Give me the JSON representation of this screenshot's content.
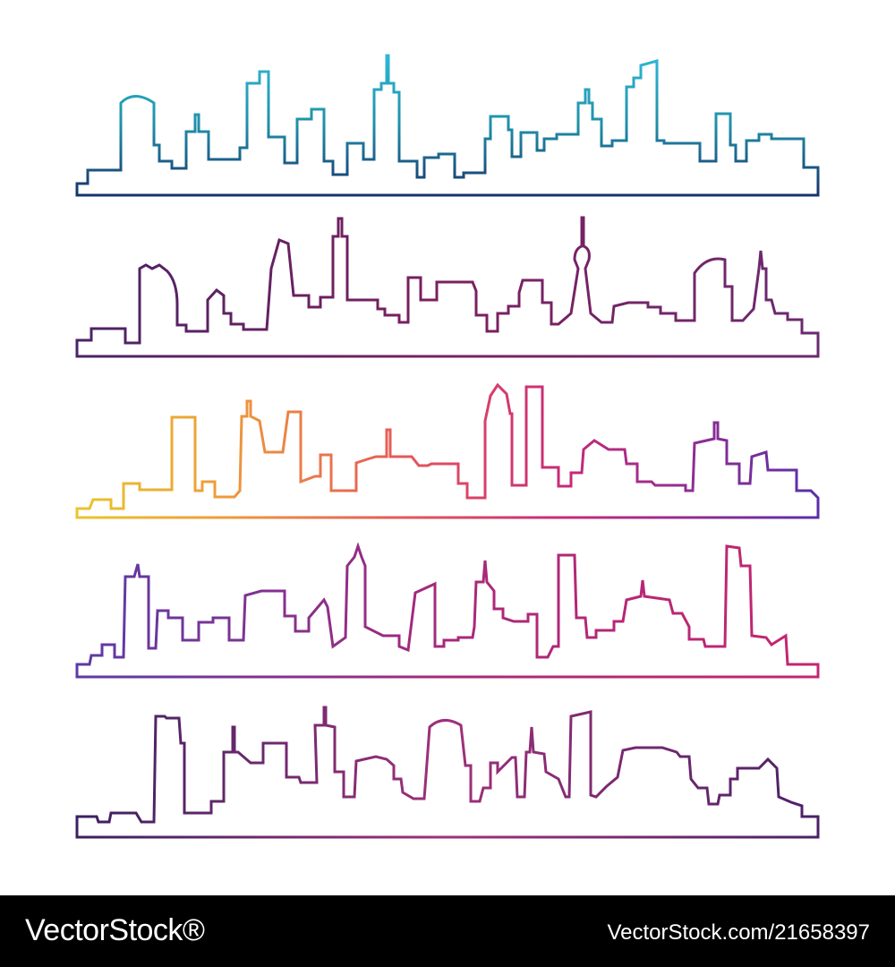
{
  "watermark": {
    "logo": "VectorStock®",
    "reference": "VectorStock.com/21658397"
  }
}
